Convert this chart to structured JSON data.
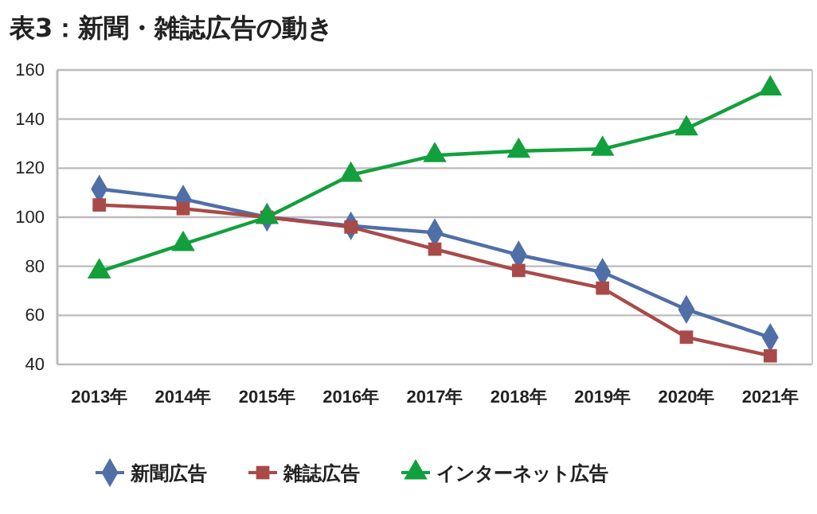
{
  "chart_data": {
    "type": "line",
    "title": "表3：新聞・雑誌広告の動き",
    "categories": [
      "2013年",
      "2014年",
      "2015年",
      "2016年",
      "2017年",
      "2018年",
      "2019年",
      "2020年",
      "2021年"
    ],
    "series": [
      {
        "name": "新聞広告",
        "color": "#4f6fa6",
        "marker": "diamond",
        "values": [
          111.5,
          107.4,
          100,
          96.5,
          93.7,
          84.6,
          77.6,
          62.4,
          51
        ]
      },
      {
        "name": "雑誌広告",
        "color": "#a94a4a",
        "marker": "square",
        "values": [
          105,
          103.5,
          100,
          96,
          87,
          78.3,
          71.1,
          51.1,
          43.5
        ]
      },
      {
        "name": "インターネット広告",
        "color": "#12a03c",
        "marker": "triangle",
        "values": [
          77.8,
          89,
          100,
          117.2,
          125.2,
          127,
          127.8,
          136.1,
          152.4
        ]
      }
    ],
    "ylim": [
      40,
      160
    ],
    "yticks": [
      40,
      60,
      80,
      100,
      120,
      140,
      160
    ],
    "grid": "y",
    "legend": "bottom"
  }
}
